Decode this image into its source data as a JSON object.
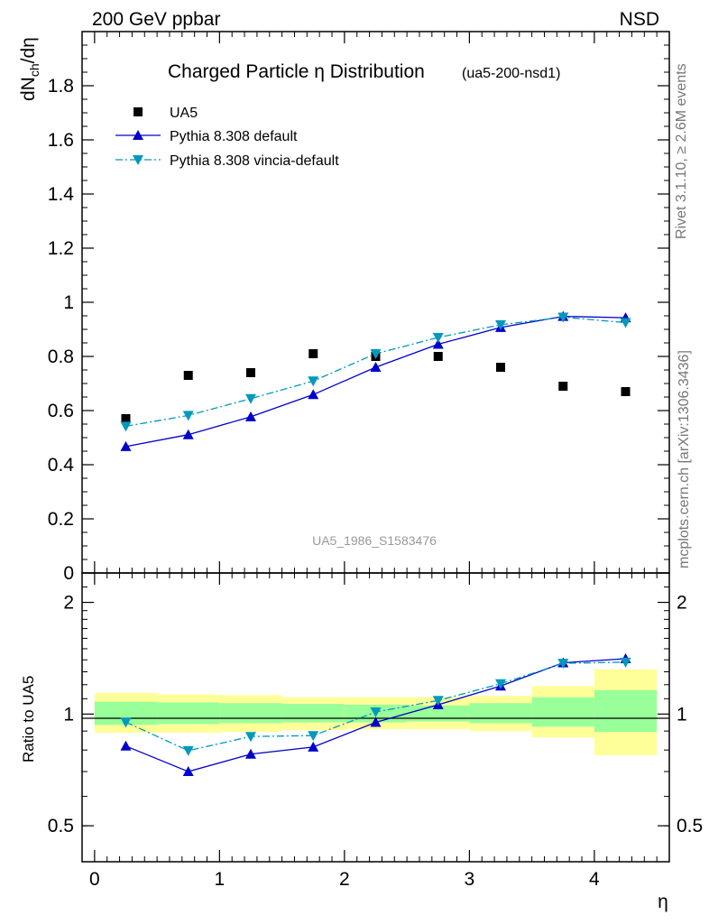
{
  "header": {
    "left_label": "200 GeV ppbar",
    "right_label": "NSD"
  },
  "side_labels": {
    "rivet": "Rivet 3.1.10, ≥ 2.6M events",
    "mcplots": "mcplots.cern.ch [arXiv:1306.3436]"
  },
  "watermark": "UA5_1986_S1583476",
  "chart_data": [
    {
      "type": "scatter",
      "title": "Charged Particle η Distribution",
      "subtitle": "(ua5-200-nsd1)",
      "ylabel": "dN_ch/dη",
      "xlim": [
        -0.1,
        4.6
      ],
      "ylim": [
        0,
        2.0
      ],
      "y_ticks": [
        0,
        0.2,
        0.4,
        0.6,
        0.8,
        1,
        1.2,
        1.4,
        1.6,
        1.8
      ],
      "y_tick_labels": [
        "0",
        "0.2",
        "0.4",
        "0.6",
        "0.8",
        "1",
        "1.2",
        "1.4",
        "1.6",
        "1.8"
      ],
      "legend_placement": "top-left",
      "x": [
        0.25,
        0.75,
        1.25,
        1.75,
        2.25,
        2.75,
        3.25,
        3.75,
        4.25
      ],
      "series": [
        {
          "name": "UA5",
          "color": "#000000",
          "marker": "square",
          "values": [
            0.57,
            0.73,
            0.74,
            0.81,
            0.8,
            0.8,
            0.76,
            0.69,
            0.67
          ]
        },
        {
          "name": "Pythia 8.308 default",
          "color": "#0000cc",
          "marker": "triangle-up",
          "line": "solid",
          "values": [
            0.467,
            0.511,
            0.577,
            0.659,
            0.76,
            0.845,
            0.907,
            0.948,
            0.943
          ]
        },
        {
          "name": "Pythia 8.308 vincia-default",
          "color": "#0099bb",
          "marker": "triangle-down",
          "line": "dashdot",
          "values": [
            0.542,
            0.582,
            0.644,
            0.709,
            0.81,
            0.87,
            0.917,
            0.945,
            0.925
          ]
        }
      ]
    },
    {
      "type": "line",
      "ylabel": "Ratio to UA5",
      "xlabel": "η",
      "xlim": [
        -0.1,
        4.6
      ],
      "ylim": [
        0.4,
        2.4
      ],
      "y_scale": "log",
      "x_ticks": [
        0,
        1,
        2,
        3,
        4
      ],
      "x_tick_labels": [
        "0",
        "1",
        "2",
        "3",
        "4"
      ],
      "y_ticks": [
        0.5,
        1,
        2
      ],
      "y_tick_labels": [
        "0.5",
        "1",
        "2"
      ],
      "x_edges": [
        0,
        0.5,
        1.0,
        1.5,
        2.0,
        2.5,
        3.0,
        3.5,
        4.0,
        4.5
      ],
      "band_outer": {
        "color": "#ffff99",
        "lower": [
          0.89,
          0.89,
          0.895,
          0.905,
          0.91,
          0.91,
          0.9,
          0.865,
          0.775
        ],
        "upper": [
          1.14,
          1.13,
          1.125,
          1.11,
          1.11,
          1.11,
          1.12,
          1.19,
          1.32
        ]
      },
      "band_inner": {
        "color": "#99ff99",
        "lower": [
          0.935,
          0.94,
          0.945,
          0.95,
          0.95,
          0.955,
          0.945,
          0.925,
          0.895
        ],
        "upper": [
          1.08,
          1.075,
          1.07,
          1.065,
          1.06,
          1.055,
          1.07,
          1.11,
          1.16
        ]
      },
      "x": [
        0.25,
        0.75,
        1.25,
        1.75,
        2.25,
        2.75,
        3.25,
        3.75,
        4.25
      ],
      "series": [
        {
          "name": "Pythia 8.308 default",
          "color": "#0000cc",
          "marker": "triangle-up",
          "line": "solid",
          "values": [
            0.82,
            0.7,
            0.78,
            0.815,
            0.95,
            1.06,
            1.19,
            1.375,
            1.41
          ]
        },
        {
          "name": "Pythia 8.308 vincia-default",
          "color": "#0099bb",
          "marker": "triangle-down",
          "line": "dashdot",
          "values": [
            0.951,
            0.797,
            0.87,
            0.875,
            1.013,
            1.088,
            1.207,
            1.37,
            1.38
          ]
        }
      ]
    }
  ]
}
